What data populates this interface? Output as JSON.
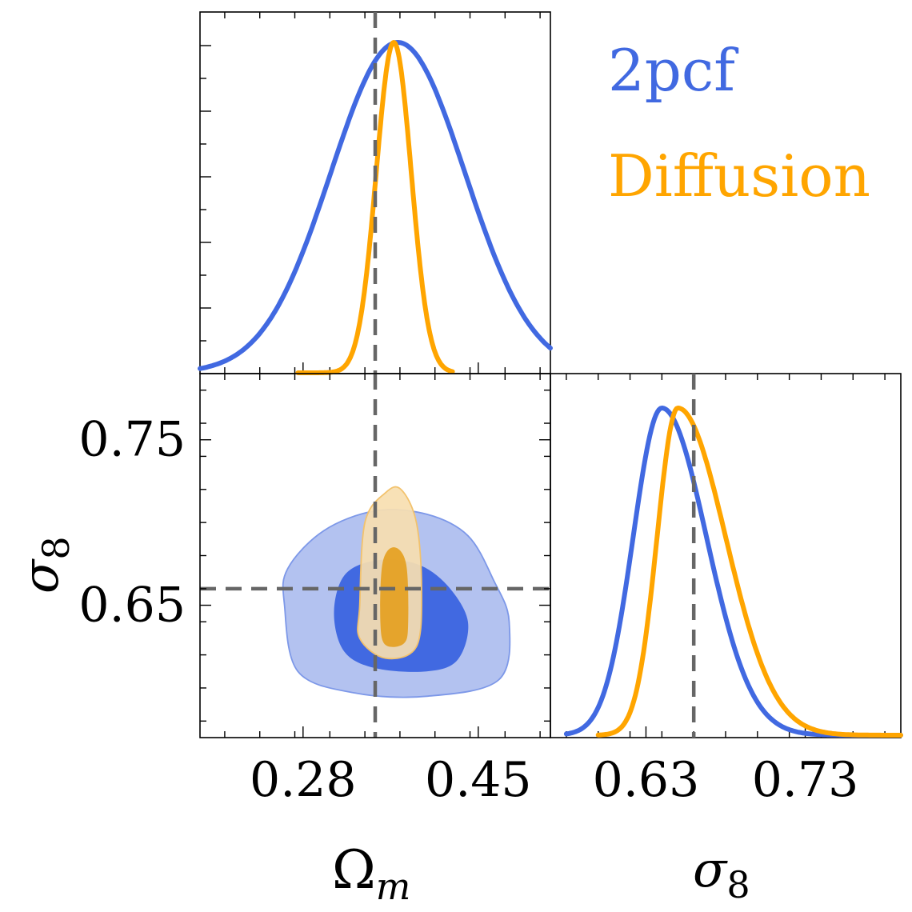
{
  "chart_data": {
    "type": "corner",
    "parameters": [
      "Ω_m",
      "σ_8"
    ],
    "axis_labels": {
      "omega_m": {
        "base": "Ω",
        "sub": "m"
      },
      "sigma_8": {
        "base": "σ",
        "sub": "8"
      }
    },
    "truth": {
      "omega_m": 0.35,
      "sigma_8": 0.66
    },
    "ranges": {
      "omega_m": [
        0.18,
        0.52
      ],
      "sigma_8": [
        0.57,
        0.79
      ]
    },
    "ticks": {
      "omega_m_major": [
        0.28,
        0.45
      ],
      "omega_m_major_labels": [
        "0.28",
        "0.45"
      ],
      "sigma_8_y_major": [
        0.65,
        0.75
      ],
      "sigma_8_y_major_labels": [
        "0.65",
        "0.75"
      ],
      "sigma_8_x_major": [
        0.63,
        0.73
      ],
      "sigma_8_x_major_labels": [
        "0.63",
        "0.73"
      ]
    },
    "series": [
      {
        "name": "2pcf",
        "color": "#4169e1",
        "omega_m_marginal": {
          "peak": 0.372,
          "sigma": 0.065,
          "range": [
            0.18,
            0.52
          ]
        },
        "sigma_8_marginal": {
          "peak": 0.64,
          "sigma_left": 0.018,
          "sigma_right": 0.028,
          "range": [
            0.58,
            0.79
          ]
        },
        "contour_68": [
          [
            0.31,
            0.645
          ],
          [
            0.32,
            0.668
          ],
          [
            0.35,
            0.677
          ],
          [
            0.39,
            0.675
          ],
          [
            0.42,
            0.662
          ],
          [
            0.44,
            0.64
          ],
          [
            0.43,
            0.617
          ],
          [
            0.4,
            0.61
          ],
          [
            0.35,
            0.612
          ],
          [
            0.32,
            0.622
          ],
          [
            0.31,
            0.645
          ]
        ],
        "contour_95": [
          [
            0.262,
            0.65
          ],
          [
            0.265,
            0.672
          ],
          [
            0.3,
            0.695
          ],
          [
            0.35,
            0.707
          ],
          [
            0.4,
            0.705
          ],
          [
            0.44,
            0.692
          ],
          [
            0.465,
            0.665
          ],
          [
            0.48,
            0.64
          ],
          [
            0.47,
            0.605
          ],
          [
            0.4,
            0.595
          ],
          [
            0.33,
            0.597
          ],
          [
            0.275,
            0.61
          ],
          [
            0.262,
            0.65
          ]
        ]
      },
      {
        "name": "Diffusion",
        "color": "#ffa500",
        "omega_m_marginal": {
          "peak": 0.368,
          "sigma": 0.017,
          "range": [
            0.275,
            0.425
          ]
        },
        "sigma_8_marginal": {
          "peak": 0.65,
          "sigma_left": 0.013,
          "sigma_right": 0.03,
          "range": [
            0.6,
            0.79
          ]
        },
        "contour_68": [
          [
            0.355,
            0.64
          ],
          [
            0.357,
            0.675
          ],
          [
            0.368,
            0.685
          ],
          [
            0.38,
            0.675
          ],
          [
            0.382,
            0.64
          ],
          [
            0.378,
            0.627
          ],
          [
            0.36,
            0.626
          ],
          [
            0.355,
            0.64
          ]
        ],
        "contour_95": [
          [
            0.335,
            0.65
          ],
          [
            0.34,
            0.7
          ],
          [
            0.36,
            0.718
          ],
          [
            0.375,
            0.72
          ],
          [
            0.39,
            0.7
          ],
          [
            0.395,
            0.66
          ],
          [
            0.39,
            0.625
          ],
          [
            0.36,
            0.618
          ],
          [
            0.335,
            0.63
          ],
          [
            0.335,
            0.65
          ]
        ]
      }
    ],
    "legend": {
      "position": "top-right",
      "entries": [
        "2pcf",
        "Diffusion"
      ]
    }
  }
}
